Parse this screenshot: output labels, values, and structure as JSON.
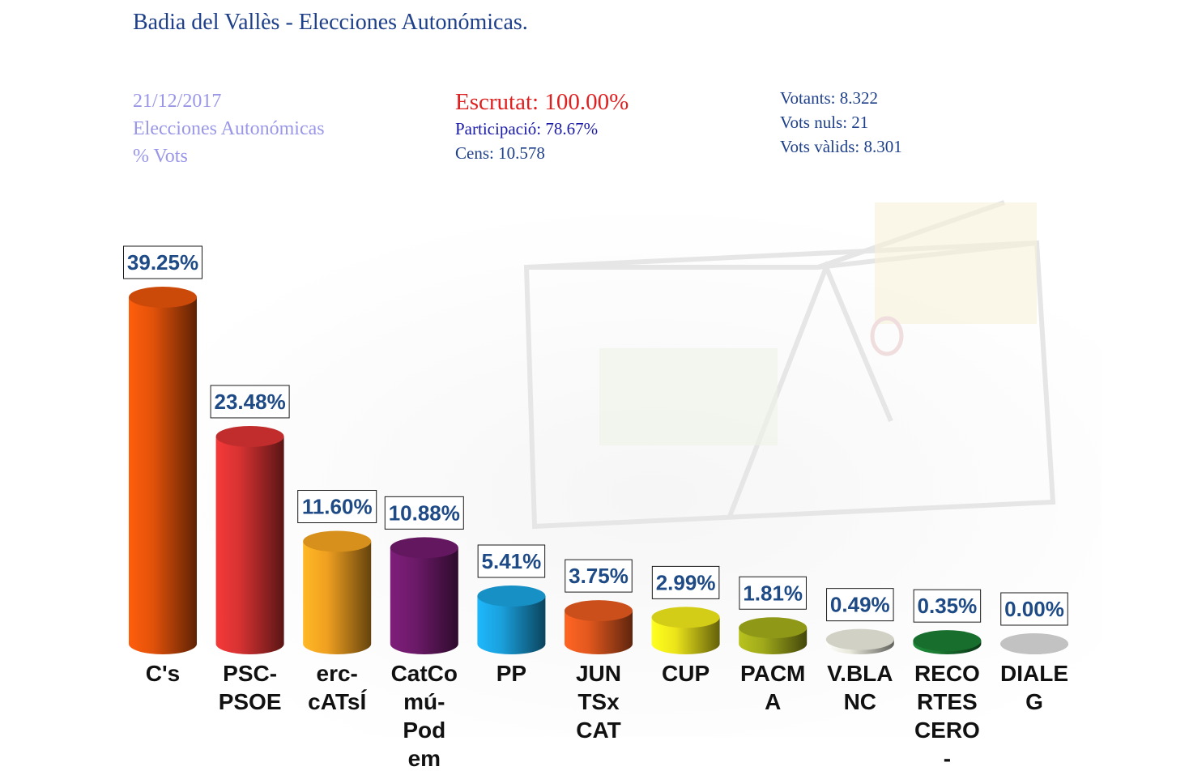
{
  "header": {
    "title": "Badia del Vallès - Elecciones Autonómicas.",
    "date": "21/12/2017",
    "election": "Elecciones Autonómicas",
    "measure": "% Vots",
    "escrutat": "Escrutat: 100.00%",
    "participacio": "Participació: 78.67%",
    "cens": "Cens: 10.578",
    "votants": "Votants: 8.322",
    "vots_nuls": "Vots nuls: 21",
    "vots_valids": "Vots vàlids: 8.301"
  },
  "colors": {
    "title": "#1e3f8a",
    "escrutat": "#e02020",
    "date_block": "#9a97e8"
  },
  "chart_data": {
    "type": "bar",
    "categories": [
      "C's",
      "PSC-PSOE",
      "erc-cATsÍ",
      "CatComú-Podem",
      "PP",
      "JUNTSxCAT",
      "CUP",
      "PACMA",
      "V.BLANC",
      "RECORTES CERO-",
      "DIALEG"
    ],
    "category_lines": [
      [
        "C's"
      ],
      [
        "PSC-",
        "PSOE"
      ],
      [
        "erc-",
        "cATsÍ"
      ],
      [
        "CatCo",
        "mú-",
        "Pod",
        "em"
      ],
      [
        "PP"
      ],
      [
        "JUN",
        "TSx",
        "CAT"
      ],
      [
        "CUP"
      ],
      [
        "PACM",
        "A"
      ],
      [
        "V.BLA",
        "NC"
      ],
      [
        "RECO",
        "RTES",
        "CERO",
        "-"
      ],
      [
        "DIALE",
        "G"
      ]
    ],
    "values": [
      39.25,
      23.48,
      11.6,
      10.88,
      5.41,
      3.75,
      2.99,
      1.81,
      0.49,
      0.35,
      0.0
    ],
    "value_labels": [
      "39.25%",
      "23.48%",
      "11.60%",
      "10.88%",
      "5.41%",
      "3.75%",
      "2.99%",
      "1.81%",
      "0.49%",
      "0.35%",
      "0.00%"
    ],
    "colors": [
      "#e2520a",
      "#d63232",
      "#f0a020",
      "#6e1a6a",
      "#1aa0dc",
      "#e2581e",
      "#ece41a",
      "#a0aa1a",
      "#e8e8dc",
      "#1a7a32",
      "#d8d8d8"
    ],
    "ylim": [
      0,
      40
    ],
    "grid": false,
    "legend": "none",
    "style": "3d-cylinder"
  }
}
